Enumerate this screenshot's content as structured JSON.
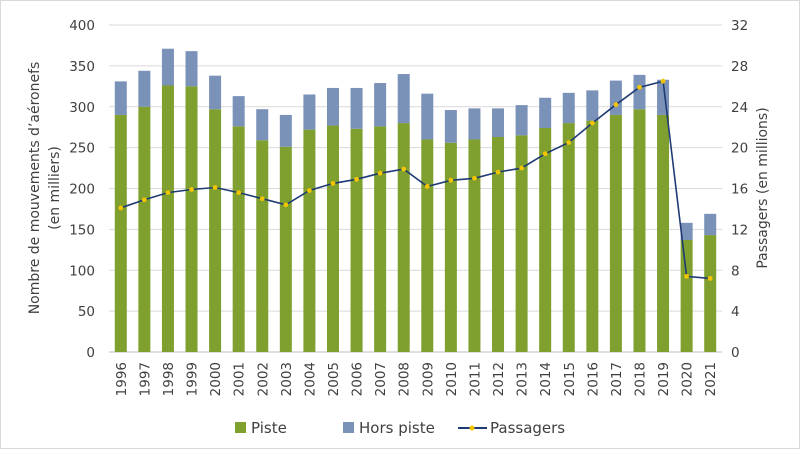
{
  "chart_data": {
    "type": "bar",
    "stacked": true,
    "categories": [
      "1996",
      "1997",
      "1998",
      "1999",
      "2000",
      "2001",
      "2002",
      "2003",
      "2004",
      "2005",
      "2006",
      "2007",
      "2008",
      "2009",
      "2010",
      "2011",
      "2012",
      "2013",
      "2014",
      "2015",
      "2016",
      "2017",
      "2018",
      "2019",
      "2020",
      "2021"
    ],
    "series": [
      {
        "name": "Piste",
        "type": "bar",
        "axis": "left",
        "color": "#7f9f2f",
        "values": [
          290,
          300,
          326,
          325,
          297,
          276,
          259,
          251,
          272,
          277,
          273,
          276,
          280,
          260,
          256,
          260,
          263,
          265,
          274,
          280,
          283,
          290,
          297,
          290,
          137,
          143
        ]
      },
      {
        "name": "Hors piste",
        "type": "bar",
        "axis": "left",
        "color": "#7a91b8",
        "values": [
          41,
          44,
          45,
          43,
          41,
          37,
          38,
          39,
          43,
          46,
          50,
          53,
          60,
          56,
          40,
          38,
          35,
          37,
          37,
          37,
          37,
          42,
          42,
          43,
          21,
          26
        ]
      },
      {
        "name": "Passagers",
        "type": "line",
        "axis": "right",
        "color": "#1f3b73",
        "marker_color": "#f2c500",
        "values": [
          14.1,
          14.9,
          15.6,
          15.9,
          16.1,
          15.6,
          15.0,
          14.4,
          15.8,
          16.5,
          16.9,
          17.5,
          17.9,
          16.2,
          16.8,
          17.0,
          17.6,
          18.0,
          19.4,
          20.5,
          22.4,
          24.2,
          25.9,
          26.5,
          7.4,
          7.2
        ]
      }
    ],
    "ylabel": "Nombre de mouvements d'aéronefs (en milliers)",
    "ylabel_line1": "Nombre de mouvements d’aéronefs",
    "ylabel_line2": "(en milliers)",
    "y2label": "Passagers (en millions)",
    "ylim": [
      0,
      400
    ],
    "y2lim": [
      0,
      32
    ],
    "yticks": [
      "0",
      "50",
      "100",
      "150",
      "200",
      "250",
      "300",
      "350",
      "400"
    ],
    "y2ticks": [
      "0",
      "4",
      "8",
      "12",
      "16",
      "20",
      "24",
      "28",
      "32"
    ],
    "grid": true,
    "legend_position": "bottom"
  }
}
